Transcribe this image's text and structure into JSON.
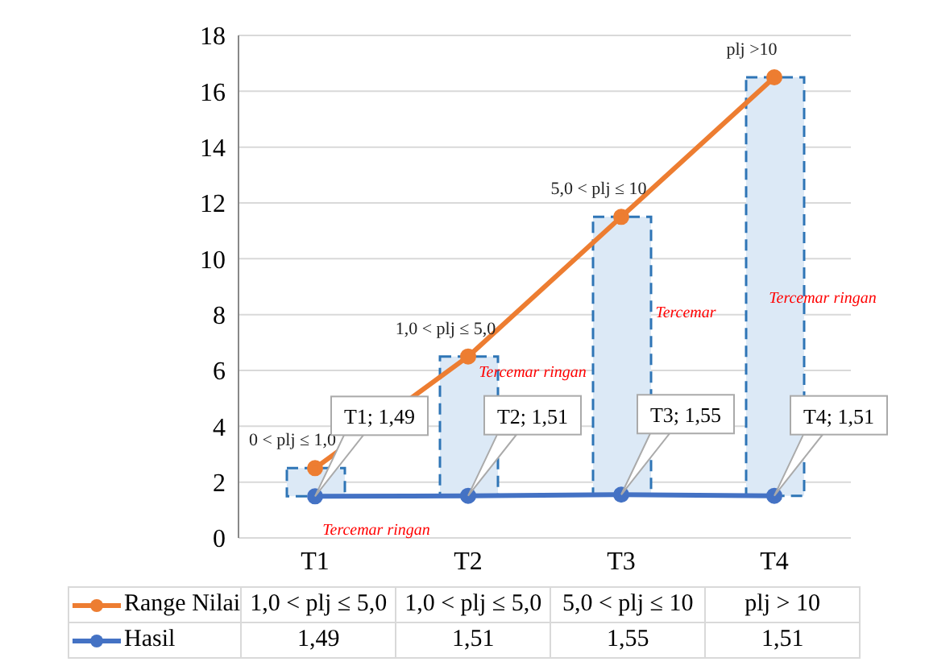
{
  "chart_data": {
    "type": "line",
    "categories": [
      "T1",
      "T2",
      "T3",
      "T4"
    ],
    "series": [
      {
        "type": "bar",
        "color": "#dce9f6",
        "base": [
          1.49,
          1.51,
          1.55,
          1.51
        ],
        "values": [
          1.01,
          4.99,
          9.95,
          14.99
        ]
      },
      {
        "name": "Range Nilai",
        "color": "#ed7d31",
        "values": [
          2.5,
          6.5,
          11.5,
          16.5
        ]
      },
      {
        "name": "Hasil",
        "color": "#4472c4",
        "values": [
          1.49,
          1.51,
          1.55,
          1.51
        ],
        "value_labels": [
          "1,49",
          "1,51",
          "1,55",
          "1,51"
        ]
      }
    ],
    "ylim": [
      0,
      18
    ],
    "yticks": [
      0,
      2,
      4,
      6,
      8,
      10,
      12,
      14,
      16,
      18
    ],
    "grid": "y",
    "legend": "bottom",
    "marker": "circle",
    "line_style": "solid",
    "annotations": [
      {
        "text": "0 < plj ≤ 1,0",
        "x": "T1",
        "y": 2.5
      },
      {
        "text": "1,0 < plj ≤ 5,0",
        "x": "T2",
        "y": 6.5
      },
      {
        "text": "5,0 < plj ≤ 10",
        "x": "T3",
        "y": 11.5
      },
      {
        "text": "plj >10",
        "x": "T4",
        "y": 16.5
      },
      "T1; 1,49",
      "T2; 1,51",
      "T3; 1,55",
      "T4; 1,51",
      "Tercemar ringan",
      "Tercemar ringan",
      "Tercemar",
      "Tercemar ringan",
      "1,0 < plj ≤ 5,0",
      "1,0 < plj ≤ 5,0",
      "5,0 < plj ≤ 10",
      "plj > 10"
    ]
  }
}
